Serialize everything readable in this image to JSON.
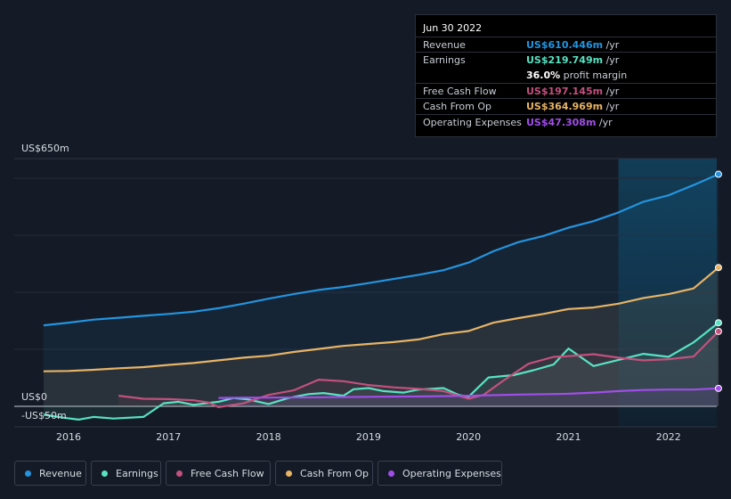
{
  "chart_data": {
    "type": "area",
    "ylabel_top": "US$650m",
    "ylabel_zero": "US$0",
    "ylabel_bottom": "-US$50m",
    "ylim": [
      -50,
      650
    ],
    "x_ticks": [
      "2016",
      "2017",
      "2018",
      "2019",
      "2020",
      "2021",
      "2022"
    ],
    "forecast_start": 2021.5,
    "series": [
      {
        "key": "revenue",
        "name": "Revenue",
        "color": "#2394df",
        "points": [
          [
            2015.75,
            213
          ],
          [
            2016.0,
            220
          ],
          [
            2016.25,
            228
          ],
          [
            2016.5,
            233
          ],
          [
            2016.75,
            238
          ],
          [
            2017.0,
            243
          ],
          [
            2017.25,
            249
          ],
          [
            2017.5,
            258
          ],
          [
            2017.75,
            270
          ],
          [
            2018.0,
            283
          ],
          [
            2018.25,
            295
          ],
          [
            2018.5,
            306
          ],
          [
            2018.75,
            314
          ],
          [
            2019.0,
            324
          ],
          [
            2019.25,
            335
          ],
          [
            2019.5,
            346
          ],
          [
            2019.75,
            358
          ],
          [
            2020.0,
            378
          ],
          [
            2020.25,
            408
          ],
          [
            2020.5,
            432
          ],
          [
            2020.75,
            448
          ],
          [
            2021.0,
            470
          ],
          [
            2021.25,
            487
          ],
          [
            2021.5,
            510
          ],
          [
            2021.75,
            538
          ],
          [
            2022.0,
            555
          ],
          [
            2022.25,
            582
          ],
          [
            2022.5,
            610.446
          ]
        ]
      },
      {
        "key": "earnings",
        "name": "Earnings",
        "color": "#58e2c2",
        "points": [
          [
            2015.75,
            -22
          ],
          [
            2015.95,
            -30
          ],
          [
            2016.1,
            -35
          ],
          [
            2016.25,
            -28
          ],
          [
            2016.45,
            -32
          ],
          [
            2016.75,
            -28
          ],
          [
            2016.95,
            8
          ],
          [
            2017.1,
            12
          ],
          [
            2017.25,
            4
          ],
          [
            2017.5,
            12
          ],
          [
            2017.65,
            22
          ],
          [
            2017.8,
            18
          ],
          [
            2018.0,
            6
          ],
          [
            2018.2,
            22
          ],
          [
            2018.4,
            32
          ],
          [
            2018.55,
            35
          ],
          [
            2018.75,
            28
          ],
          [
            2018.85,
            45
          ],
          [
            2019.0,
            48
          ],
          [
            2019.15,
            40
          ],
          [
            2019.35,
            36
          ],
          [
            2019.5,
            44
          ],
          [
            2019.75,
            48
          ],
          [
            2019.9,
            30
          ],
          [
            2020.0,
            25
          ],
          [
            2020.2,
            76
          ],
          [
            2020.45,
            82
          ],
          [
            2020.65,
            95
          ],
          [
            2020.85,
            110
          ],
          [
            2021.0,
            152
          ],
          [
            2021.25,
            106
          ],
          [
            2021.5,
            122
          ],
          [
            2021.75,
            138
          ],
          [
            2022.0,
            130
          ],
          [
            2022.25,
            168
          ],
          [
            2022.5,
            219.749
          ]
        ]
      },
      {
        "key": "free_cash_flow",
        "name": "Free Cash Flow",
        "color": "#c2517d",
        "points": [
          [
            2016.5,
            28
          ],
          [
            2016.75,
            20
          ],
          [
            2017.0,
            19
          ],
          [
            2017.25,
            16
          ],
          [
            2017.4,
            10
          ],
          [
            2017.5,
            -2
          ],
          [
            2017.75,
            8
          ],
          [
            2018.0,
            30
          ],
          [
            2018.25,
            42
          ],
          [
            2018.5,
            70
          ],
          [
            2018.75,
            66
          ],
          [
            2019.0,
            56
          ],
          [
            2019.25,
            50
          ],
          [
            2019.5,
            46
          ],
          [
            2019.75,
            40
          ],
          [
            2019.9,
            28
          ],
          [
            2020.0,
            20
          ],
          [
            2020.15,
            30
          ],
          [
            2020.35,
            68
          ],
          [
            2020.6,
            112
          ],
          [
            2020.85,
            130
          ],
          [
            2021.0,
            132
          ],
          [
            2021.25,
            137
          ],
          [
            2021.5,
            128
          ],
          [
            2021.75,
            121
          ],
          [
            2022.0,
            124
          ],
          [
            2022.25,
            131
          ],
          [
            2022.5,
            197.145
          ]
        ]
      },
      {
        "key": "cash_from_op",
        "name": "Cash From Op",
        "color": "#e7b466",
        "points": [
          [
            2015.75,
            92
          ],
          [
            2016.0,
            93
          ],
          [
            2016.25,
            96
          ],
          [
            2016.5,
            100
          ],
          [
            2016.75,
            103
          ],
          [
            2017.0,
            109
          ],
          [
            2017.25,
            114
          ],
          [
            2017.5,
            121
          ],
          [
            2017.75,
            128
          ],
          [
            2018.0,
            133
          ],
          [
            2018.25,
            143
          ],
          [
            2018.5,
            151
          ],
          [
            2018.75,
            159
          ],
          [
            2019.0,
            164
          ],
          [
            2019.25,
            169
          ],
          [
            2019.5,
            176
          ],
          [
            2019.75,
            190
          ],
          [
            2020.0,
            198
          ],
          [
            2020.25,
            220
          ],
          [
            2020.5,
            232
          ],
          [
            2020.75,
            243
          ],
          [
            2021.0,
            256
          ],
          [
            2021.25,
            260
          ],
          [
            2021.5,
            270
          ],
          [
            2021.75,
            285
          ],
          [
            2022.0,
            295
          ],
          [
            2022.25,
            310
          ],
          [
            2022.5,
            364.969
          ]
        ]
      },
      {
        "key": "operating_expenses",
        "name": "Operating Expenses",
        "color": "#a04ee9",
        "points": [
          [
            2017.5,
            22
          ],
          [
            2017.75,
            23
          ],
          [
            2018.0,
            23
          ],
          [
            2018.5,
            24
          ],
          [
            2019.0,
            25
          ],
          [
            2019.5,
            26
          ],
          [
            2020.0,
            28
          ],
          [
            2020.5,
            31
          ],
          [
            2021.0,
            33
          ],
          [
            2021.25,
            36
          ],
          [
            2021.5,
            40
          ],
          [
            2021.75,
            43
          ],
          [
            2022.0,
            44
          ],
          [
            2022.25,
            44
          ],
          [
            2022.5,
            47.308
          ]
        ]
      }
    ]
  },
  "tooltip": {
    "date": "Jun 30 2022",
    "rows": [
      {
        "label": "Revenue",
        "value": "US$610.446m",
        "unit": " /yr",
        "color": "#2394df"
      },
      {
        "label": "Earnings",
        "value": "US$219.749m",
        "unit": " /yr",
        "color": "#58e2c2"
      },
      {
        "label": "",
        "margin_value": "36.0%",
        "margin_text": " profit margin"
      },
      {
        "label": "Free Cash Flow",
        "value": "US$197.145m",
        "unit": " /yr",
        "color": "#c2517d"
      },
      {
        "label": "Cash From Op",
        "value": "US$364.969m",
        "unit": " /yr",
        "color": "#e7b466"
      },
      {
        "label": "Operating Expenses",
        "value": "US$47.308m",
        "unit": " /yr",
        "color": "#a04ee9"
      }
    ]
  },
  "legend": [
    {
      "label": "Revenue",
      "color": "#2394df"
    },
    {
      "label": "Earnings",
      "color": "#58e2c2"
    },
    {
      "label": "Free Cash Flow",
      "color": "#c2517d"
    },
    {
      "label": "Cash From Op",
      "color": "#e7b466"
    },
    {
      "label": "Operating Expenses",
      "color": "#a04ee9"
    }
  ]
}
